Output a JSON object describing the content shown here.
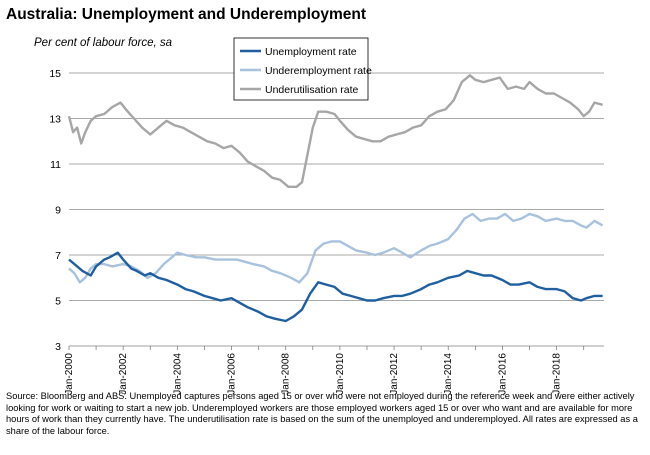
{
  "chart_data": {
    "type": "line",
    "title": "Australia: Unemployment and Underemployment",
    "subtitle": "Per cent of labour force, sa",
    "ylabel": "",
    "xlabel": "",
    "ylim": [
      3,
      15
    ],
    "yticks": [
      "3",
      "5",
      "7",
      "9",
      "11",
      "13",
      "15"
    ],
    "xlim": [
      2000,
      2019.75
    ],
    "xticks": [
      {
        "x": 2000,
        "label": "Jan-2000"
      },
      {
        "x": 2002,
        "label": "Jan-2002"
      },
      {
        "x": 2004,
        "label": "Jan-2004"
      },
      {
        "x": 2006,
        "label": "Jan-2006"
      },
      {
        "x": 2008,
        "label": "Jan-2008"
      },
      {
        "x": 2010,
        "label": "Jan-2010"
      },
      {
        "x": 2012,
        "label": "Jan-2012"
      },
      {
        "x": 2014,
        "label": "Jan-2014"
      },
      {
        "x": 2016,
        "label": "Jan-2016"
      },
      {
        "x": 2018,
        "label": "Jan-2018"
      }
    ],
    "grid": "horizontal",
    "legend_position": "top-center",
    "series": [
      {
        "name": "Unemployment rate",
        "color": "#1f5f9f",
        "points": [
          [
            2000.0,
            6.8
          ],
          [
            2000.2,
            6.6
          ],
          [
            2000.5,
            6.3
          ],
          [
            2000.8,
            6.1
          ],
          [
            2001.0,
            6.5
          ],
          [
            2001.3,
            6.8
          ],
          [
            2001.5,
            6.9
          ],
          [
            2001.8,
            7.1
          ],
          [
            2002.0,
            6.8
          ],
          [
            2002.3,
            6.4
          ],
          [
            2002.5,
            6.3
          ],
          [
            2002.8,
            6.1
          ],
          [
            2003.0,
            6.2
          ],
          [
            2003.3,
            6.0
          ],
          [
            2003.6,
            5.9
          ],
          [
            2004.0,
            5.7
          ],
          [
            2004.3,
            5.5
          ],
          [
            2004.6,
            5.4
          ],
          [
            2005.0,
            5.2
          ],
          [
            2005.3,
            5.1
          ],
          [
            2005.6,
            5.0
          ],
          [
            2006.0,
            5.1
          ],
          [
            2006.3,
            4.9
          ],
          [
            2006.6,
            4.7
          ],
          [
            2007.0,
            4.5
          ],
          [
            2007.3,
            4.3
          ],
          [
            2007.6,
            4.2
          ],
          [
            2008.0,
            4.1
          ],
          [
            2008.3,
            4.3
          ],
          [
            2008.6,
            4.6
          ],
          [
            2008.9,
            5.3
          ],
          [
            2009.2,
            5.8
          ],
          [
            2009.5,
            5.7
          ],
          [
            2009.8,
            5.6
          ],
          [
            2010.1,
            5.3
          ],
          [
            2010.4,
            5.2
          ],
          [
            2010.7,
            5.1
          ],
          [
            2011.0,
            5.0
          ],
          [
            2011.3,
            5.0
          ],
          [
            2011.6,
            5.1
          ],
          [
            2012.0,
            5.2
          ],
          [
            2012.3,
            5.2
          ],
          [
            2012.6,
            5.3
          ],
          [
            2013.0,
            5.5
          ],
          [
            2013.3,
            5.7
          ],
          [
            2013.6,
            5.8
          ],
          [
            2014.0,
            6.0
          ],
          [
            2014.4,
            6.1
          ],
          [
            2014.7,
            6.3
          ],
          [
            2015.0,
            6.2
          ],
          [
            2015.3,
            6.1
          ],
          [
            2015.6,
            6.1
          ],
          [
            2016.0,
            5.9
          ],
          [
            2016.3,
            5.7
          ],
          [
            2016.6,
            5.7
          ],
          [
            2017.0,
            5.8
          ],
          [
            2017.3,
            5.6
          ],
          [
            2017.6,
            5.5
          ],
          [
            2018.0,
            5.5
          ],
          [
            2018.3,
            5.4
          ],
          [
            2018.6,
            5.1
          ],
          [
            2018.9,
            5.0
          ],
          [
            2019.1,
            5.1
          ],
          [
            2019.4,
            5.2
          ],
          [
            2019.7,
            5.2
          ]
        ]
      },
      {
        "name": "Underemployment rate",
        "color": "#a8c2de",
        "points": [
          [
            2000.0,
            6.4
          ],
          [
            2000.2,
            6.2
          ],
          [
            2000.4,
            5.8
          ],
          [
            2000.6,
            6.0
          ],
          [
            2000.8,
            6.4
          ],
          [
            2001.0,
            6.6
          ],
          [
            2001.3,
            6.6
          ],
          [
            2001.6,
            6.5
          ],
          [
            2002.0,
            6.6
          ],
          [
            2002.3,
            6.5
          ],
          [
            2002.6,
            6.3
          ],
          [
            2002.9,
            6.0
          ],
          [
            2003.2,
            6.2
          ],
          [
            2003.5,
            6.6
          ],
          [
            2003.8,
            6.9
          ],
          [
            2004.0,
            7.1
          ],
          [
            2004.3,
            7.0
          ],
          [
            2004.7,
            6.9
          ],
          [
            2005.0,
            6.9
          ],
          [
            2005.4,
            6.8
          ],
          [
            2005.8,
            6.8
          ],
          [
            2006.2,
            6.8
          ],
          [
            2006.5,
            6.7
          ],
          [
            2006.8,
            6.6
          ],
          [
            2007.2,
            6.5
          ],
          [
            2007.5,
            6.3
          ],
          [
            2007.8,
            6.2
          ],
          [
            2008.2,
            6.0
          ],
          [
            2008.5,
            5.8
          ],
          [
            2008.8,
            6.2
          ],
          [
            2009.1,
            7.2
          ],
          [
            2009.4,
            7.5
          ],
          [
            2009.7,
            7.6
          ],
          [
            2010.0,
            7.6
          ],
          [
            2010.3,
            7.4
          ],
          [
            2010.6,
            7.2
          ],
          [
            2011.0,
            7.1
          ],
          [
            2011.3,
            7.0
          ],
          [
            2011.6,
            7.1
          ],
          [
            2012.0,
            7.3
          ],
          [
            2012.3,
            7.1
          ],
          [
            2012.6,
            6.9
          ],
          [
            2013.0,
            7.2
          ],
          [
            2013.3,
            7.4
          ],
          [
            2013.6,
            7.5
          ],
          [
            2014.0,
            7.7
          ],
          [
            2014.3,
            8.1
          ],
          [
            2014.6,
            8.6
          ],
          [
            2014.9,
            8.8
          ],
          [
            2015.2,
            8.5
          ],
          [
            2015.5,
            8.6
          ],
          [
            2015.8,
            8.6
          ],
          [
            2016.1,
            8.8
          ],
          [
            2016.4,
            8.5
          ],
          [
            2016.7,
            8.6
          ],
          [
            2017.0,
            8.8
          ],
          [
            2017.3,
            8.7
          ],
          [
            2017.6,
            8.5
          ],
          [
            2018.0,
            8.6
          ],
          [
            2018.3,
            8.5
          ],
          [
            2018.6,
            8.5
          ],
          [
            2018.9,
            8.3
          ],
          [
            2019.1,
            8.2
          ],
          [
            2019.4,
            8.5
          ],
          [
            2019.7,
            8.3
          ]
        ]
      },
      {
        "name": "Underutilisation rate",
        "color": "#a6a6a6",
        "points": [
          [
            2000.0,
            13.1
          ],
          [
            2000.15,
            12.4
          ],
          [
            2000.3,
            12.6
          ],
          [
            2000.45,
            11.9
          ],
          [
            2000.6,
            12.4
          ],
          [
            2000.8,
            12.9
          ],
          [
            2001.0,
            13.1
          ],
          [
            2001.3,
            13.2
          ],
          [
            2001.6,
            13.5
          ],
          [
            2001.9,
            13.7
          ],
          [
            2002.1,
            13.4
          ],
          [
            2002.4,
            13.0
          ],
          [
            2002.7,
            12.6
          ],
          [
            2003.0,
            12.3
          ],
          [
            2003.3,
            12.6
          ],
          [
            2003.6,
            12.9
          ],
          [
            2003.9,
            12.7
          ],
          [
            2004.2,
            12.6
          ],
          [
            2004.5,
            12.4
          ],
          [
            2004.8,
            12.2
          ],
          [
            2005.1,
            12.0
          ],
          [
            2005.4,
            11.9
          ],
          [
            2005.7,
            11.7
          ],
          [
            2006.0,
            11.8
          ],
          [
            2006.3,
            11.5
          ],
          [
            2006.6,
            11.1
          ],
          [
            2006.9,
            10.9
          ],
          [
            2007.2,
            10.7
          ],
          [
            2007.5,
            10.4
          ],
          [
            2007.8,
            10.3
          ],
          [
            2008.1,
            10.0
          ],
          [
            2008.4,
            10.0
          ],
          [
            2008.6,
            10.2
          ],
          [
            2008.8,
            11.4
          ],
          [
            2009.0,
            12.6
          ],
          [
            2009.2,
            13.3
          ],
          [
            2009.5,
            13.3
          ],
          [
            2009.8,
            13.2
          ],
          [
            2010.0,
            12.9
          ],
          [
            2010.3,
            12.5
          ],
          [
            2010.6,
            12.2
          ],
          [
            2010.9,
            12.1
          ],
          [
            2011.2,
            12.0
          ],
          [
            2011.5,
            12.0
          ],
          [
            2011.8,
            12.2
          ],
          [
            2012.1,
            12.3
          ],
          [
            2012.4,
            12.4
          ],
          [
            2012.7,
            12.6
          ],
          [
            2013.0,
            12.7
          ],
          [
            2013.3,
            13.1
          ],
          [
            2013.6,
            13.3
          ],
          [
            2013.9,
            13.4
          ],
          [
            2014.2,
            13.8
          ],
          [
            2014.5,
            14.6
          ],
          [
            2014.8,
            14.9
          ],
          [
            2015.0,
            14.7
          ],
          [
            2015.3,
            14.6
          ],
          [
            2015.6,
            14.7
          ],
          [
            2015.9,
            14.8
          ],
          [
            2016.2,
            14.3
          ],
          [
            2016.5,
            14.4
          ],
          [
            2016.8,
            14.3
          ],
          [
            2017.0,
            14.6
          ],
          [
            2017.3,
            14.3
          ],
          [
            2017.6,
            14.1
          ],
          [
            2017.9,
            14.1
          ],
          [
            2018.2,
            13.9
          ],
          [
            2018.5,
            13.7
          ],
          [
            2018.8,
            13.4
          ],
          [
            2019.0,
            13.1
          ],
          [
            2019.2,
            13.3
          ],
          [
            2019.4,
            13.7
          ],
          [
            2019.7,
            13.6
          ]
        ]
      }
    ]
  },
  "source_text": "Source: Bloomberg and ABS. Unemployed captures persons aged 15 or over who were not employed during the reference week and were either actively looking for work or waiting to start a new job. Underemployed workers are those employed workers aged 15 or over who want and are available for more hours of work than they currently have. The underutilisation rate is based on the sum of the unemployed and underemployed. All rates are expressed as a share of the labour force."
}
